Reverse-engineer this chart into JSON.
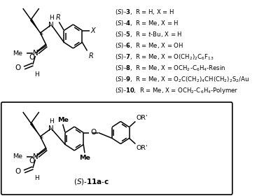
{
  "bg_color": "#ffffff",
  "label_lines": [
    [
      "(",
      "S",
      ")-",
      "3",
      ",  R = H, X = H"
    ],
    [
      "(",
      "S",
      ")-",
      "4",
      ",  R = Me, X = H"
    ],
    [
      "(",
      "S",
      ")-",
      "5",
      ",  R = ",
      "t",
      "-Bu, X = H"
    ],
    [
      "(",
      "S",
      ")-",
      "6",
      ",  R = Me, X = OH"
    ],
    [
      "(",
      "S",
      ")-",
      "7",
      ",  R = Me, X = O(CH",
      "2",
      ")",
      "2",
      "C",
      "6",
      "F",
      "13"
    ],
    [
      "(",
      "S",
      ")-",
      "8",
      ",  R = Me, X = OCH",
      "2",
      "-C",
      "6",
      "H",
      "4",
      "-Resin"
    ],
    [
      "(",
      "S",
      ")-",
      "9",
      ",  R = Me, X = O",
      "2",
      "C(CH",
      "2",
      ")",
      "4",
      "CH(CH",
      "2",
      ")",
      "2",
      "S",
      "2",
      "/Au"
    ],
    [
      "(",
      "S",
      ")-",
      "10",
      ",  R = Me, X = OCH",
      "2",
      "-C",
      "6",
      "H",
      "4",
      "-Polymer"
    ]
  ]
}
